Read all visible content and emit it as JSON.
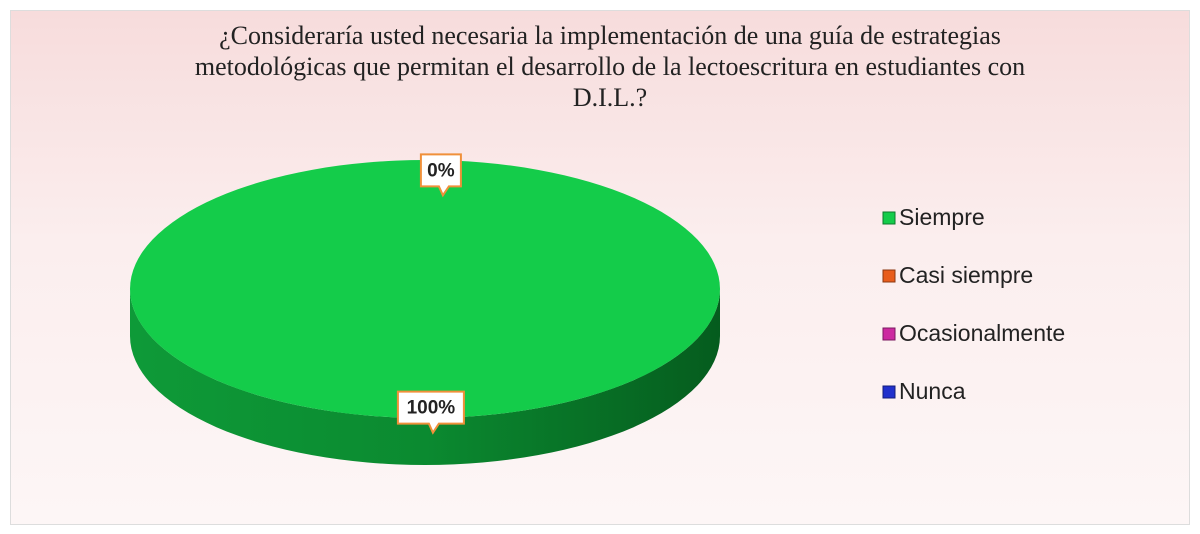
{
  "chart_data": {
    "type": "pie",
    "title": "¿Consideraría usted necesaria la implementación de una guía de estrategias metodológicas que permitan el desarrollo de la lectoescritura en estudiantes con D.I.L.?",
    "categories": [
      "Siempre",
      "Casi siempre",
      "Ocasionalmente",
      "Nunca"
    ],
    "values": [
      100,
      0,
      0,
      0
    ],
    "value_labels": [
      "100%",
      "0%",
      null,
      null
    ],
    "colors": [
      "#14cc4a",
      "#e85d1c",
      "#cc2aa0",
      "#2030cc"
    ],
    "legend": "right"
  }
}
